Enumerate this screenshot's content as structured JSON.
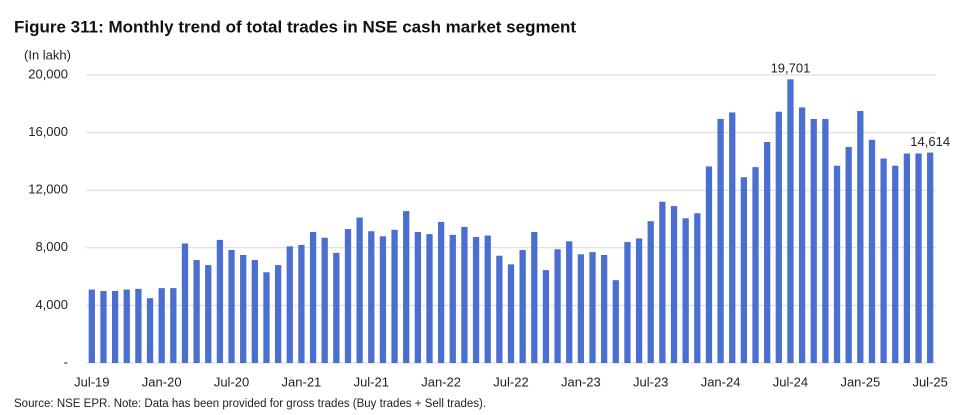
{
  "chart_data": {
    "type": "bar",
    "title": "Figure 311: Monthly trend of total trades in NSE cash market segment",
    "y_label": "(In lakh)",
    "source": "Source: NSE EPR. Note: Data has been provided for gross trades (Buy trades + Sell trades).",
    "categories": [
      "Jul-19",
      null,
      null,
      null,
      null,
      null,
      "Jan-20",
      null,
      null,
      null,
      null,
      null,
      "Jul-20",
      null,
      null,
      null,
      null,
      null,
      "Jan-21",
      null,
      null,
      null,
      null,
      null,
      "Jul-21",
      null,
      null,
      null,
      null,
      null,
      "Jan-22",
      null,
      null,
      null,
      null,
      null,
      "Jul-22",
      null,
      null,
      null,
      null,
      null,
      "Jan-23",
      null,
      null,
      null,
      null,
      null,
      "Jul-23",
      null,
      null,
      null,
      null,
      null,
      "Jan-24",
      null,
      null,
      null,
      null,
      null,
      "Jul-24",
      null,
      null,
      null,
      null,
      null,
      "Jan-25",
      null,
      null,
      null,
      null,
      null,
      "Jul-25"
    ],
    "values": [
      5100,
      5000,
      5000,
      5100,
      5150,
      4500,
      5200,
      5200,
      8300,
      7150,
      6800,
      8550,
      7850,
      7500,
      7150,
      6300,
      6800,
      8100,
      8200,
      9100,
      8700,
      7650,
      9300,
      10100,
      9150,
      8800,
      9250,
      10550,
      9100,
      8950,
      9800,
      8900,
      9450,
      8750,
      8850,
      7450,
      6850,
      7850,
      9100,
      6450,
      7900,
      8450,
      7550,
      7700,
      7500,
      5750,
      8400,
      8650,
      9850,
      11200,
      10900,
      10050,
      10400,
      13650,
      16950,
      17400,
      12900,
      13600,
      15350,
      17450,
      19701,
      17750,
      16950,
      16950,
      13700,
      15000,
      17500,
      15500,
      14200,
      13700,
      14550,
      14550,
      14614
    ],
    "value_labels": [
      null,
      null,
      null,
      null,
      null,
      null,
      null,
      null,
      null,
      null,
      null,
      null,
      null,
      null,
      null,
      null,
      null,
      null,
      null,
      null,
      null,
      null,
      null,
      null,
      null,
      null,
      null,
      null,
      null,
      null,
      null,
      null,
      null,
      null,
      null,
      null,
      null,
      null,
      null,
      null,
      null,
      null,
      null,
      null,
      null,
      null,
      null,
      null,
      null,
      null,
      null,
      null,
      null,
      null,
      null,
      null,
      null,
      null,
      null,
      null,
      "19,701",
      null,
      null,
      null,
      null,
      null,
      null,
      null,
      null,
      null,
      null,
      null,
      "14,614"
    ],
    "color": "#4a6fd0",
    "ylim": [
      0,
      20000
    ],
    "yticks": [
      {
        "value": 0,
        "label": "-"
      },
      {
        "value": 4000,
        "label": "4,000"
      },
      {
        "value": 8000,
        "label": "8,000"
      },
      {
        "value": 12000,
        "label": "12,000"
      },
      {
        "value": 16000,
        "label": "16,000"
      },
      {
        "value": 20000,
        "label": "20,000"
      }
    ],
    "grid": true
  }
}
